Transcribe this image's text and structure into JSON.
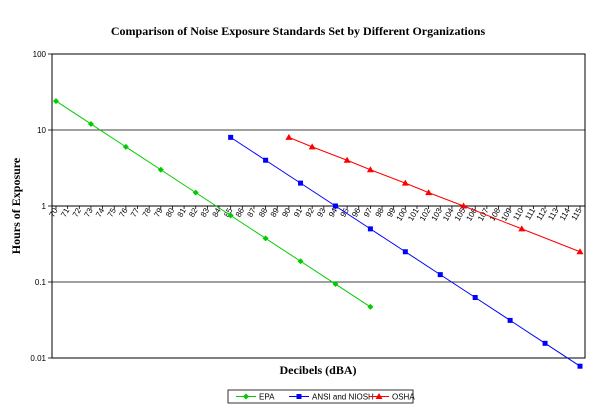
{
  "chart_data": {
    "type": "line",
    "title": "Comparison of Noise Exposure Standards Set by Different Organizations",
    "xlabel": "Decibels (dBA)",
    "ylabel": "Hours of Exposure",
    "y_scale": "log",
    "ylim": [
      0.01,
      100
    ],
    "y_ticks": [
      "0.01",
      "0.1",
      "1",
      "10",
      "100"
    ],
    "x_ticks": [
      70,
      71,
      72,
      73,
      74,
      75,
      76,
      77,
      78,
      79,
      80,
      81,
      82,
      83,
      84,
      85,
      86,
      87,
      88,
      89,
      90,
      91,
      92,
      93,
      94,
      95,
      96,
      97,
      98,
      99,
      100,
      101,
      102,
      103,
      104,
      105,
      106,
      107,
      108,
      109,
      110,
      111,
      112,
      113,
      114,
      115
    ],
    "x_axis_crosses_y_at": 1,
    "grid": "horizontal major lines",
    "legend_position": "bottom",
    "series": [
      {
        "name": "EPA",
        "color": "#00cc00",
        "marker": "diamond",
        "points": [
          [
            70,
            24
          ],
          [
            73,
            12
          ],
          [
            76,
            6
          ],
          [
            79,
            3
          ],
          [
            82,
            1.5
          ],
          [
            85,
            0.75
          ],
          [
            88,
            0.375
          ],
          [
            91,
            0.1875
          ],
          [
            94,
            0.094
          ],
          [
            97,
            0.047
          ]
        ]
      },
      {
        "name": "ANSI and NIOSH",
        "color": "#0000ff",
        "marker": "square",
        "points": [
          [
            85,
            8
          ],
          [
            88,
            4
          ],
          [
            91,
            2
          ],
          [
            94,
            1
          ],
          [
            97,
            0.5
          ],
          [
            100,
            0.25
          ],
          [
            103,
            0.125
          ],
          [
            106,
            0.0625
          ],
          [
            109,
            0.03125
          ],
          [
            112,
            0.0156
          ],
          [
            115,
            0.0078
          ]
        ]
      },
      {
        "name": "OSHA",
        "color": "#ff0000",
        "marker": "triangle",
        "points": [
          [
            90,
            8
          ],
          [
            92,
            6
          ],
          [
            95,
            4
          ],
          [
            97,
            3
          ],
          [
            100,
            2
          ],
          [
            102,
            1.5
          ],
          [
            105,
            1
          ],
          [
            110,
            0.5
          ],
          [
            115,
            0.25
          ]
        ]
      }
    ]
  }
}
